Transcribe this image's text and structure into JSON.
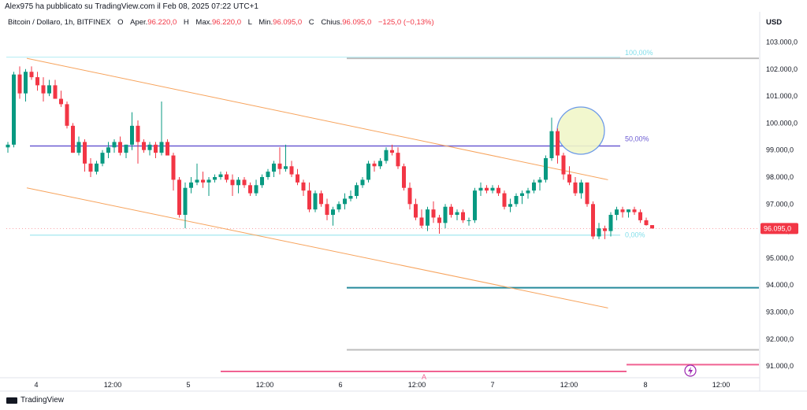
{
  "header": {
    "published_line": "Alex975 ha pubblicato su TradingView.com il Feb 08, 2025 07:22 UTC+1",
    "symbol": "Bitcoin / Dollaro, 1h, BITFINEX",
    "open_label": "O",
    "open_key": "Aper.",
    "open_value": "96.220,0",
    "high_label": "H",
    "high_key": "Max.",
    "high_value": "96.220,0",
    "low_label": "L",
    "low_key": "Min.",
    "low_value": "96.095,0",
    "close_label": "C",
    "close_key": "Chius.",
    "close_value": "96.095,0",
    "change": "−125,0 (−0,13%)"
  },
  "axis": {
    "currency": "USD",
    "price_labels": [
      "103.000,0",
      "102.000,0",
      "101.000,0",
      "100.000,0",
      "99.000,0",
      "98.000,0",
      "97.000,0",
      "96.000,0",
      "95.000,0",
      "94.000,0",
      "93.000,0",
      "92.000,0",
      "91.000,0"
    ],
    "time_labels": [
      "4",
      "12:00",
      "5",
      "12:00",
      "6",
      "12:00",
      "7",
      "12:00",
      "8",
      "12:00"
    ],
    "current_price_tag": "96.095,0"
  },
  "annotations": {
    "fib_100": "100,00%",
    "fib_50": "50,00%",
    "fib_0": "0,00%",
    "alert_marker": "A"
  },
  "footer": {
    "brand": "TradingView"
  },
  "colors": {
    "up": "#089981",
    "down": "#f23645",
    "trendline": "#f7a35c",
    "level50": "#6b5bd2",
    "teal_level": "#268a9c",
    "light_level": "#b2ebf2",
    "pink_level": "#f06292",
    "grey_level": "#bdbdbd"
  },
  "chart_data": {
    "type": "candlestick",
    "symbol": "Bitcoin / Dollaro",
    "interval": "1h",
    "exchange": "BITFINEX",
    "ylim": [
      90400,
      103900
    ],
    "price_levels": {
      "fib_100": 102400,
      "fib_50": 99150,
      "fib_0": 95850,
      "support_teal": 93900,
      "grey_lower": 91600,
      "pink_lower": 90800,
      "pink_right": 91050
    },
    "trendlines": [
      {
        "from": [
          0,
          102400
        ],
        "to": [
          121,
          97900
        ]
      },
      {
        "from": [
          0,
          97600
        ],
        "to": [
          121,
          93150
        ]
      }
    ],
    "candles": [
      {
        "o": 99100,
        "h": 99300,
        "l": 98900,
        "c": 99200
      },
      {
        "o": 99200,
        "h": 101900,
        "l": 99100,
        "c": 101800
      },
      {
        "o": 101800,
        "h": 102100,
        "l": 100900,
        "c": 101100
      },
      {
        "o": 101100,
        "h": 102000,
        "l": 100800,
        "c": 101900
      },
      {
        "o": 101900,
        "h": 102100,
        "l": 101600,
        "c": 101700
      },
      {
        "o": 101700,
        "h": 101900,
        "l": 101200,
        "c": 101400
      },
      {
        "o": 101400,
        "h": 101700,
        "l": 100800,
        "c": 101100
      },
      {
        "o": 101100,
        "h": 101600,
        "l": 101000,
        "c": 101400
      },
      {
        "o": 101400,
        "h": 101600,
        "l": 100900,
        "c": 100900
      },
      {
        "o": 100900,
        "h": 101200,
        "l": 100600,
        "c": 100700
      },
      {
        "o": 100700,
        "h": 100800,
        "l": 99800,
        "c": 99900
      },
      {
        "o": 99900,
        "h": 100000,
        "l": 98900,
        "c": 98900
      },
      {
        "o": 98900,
        "h": 99500,
        "l": 98800,
        "c": 99300
      },
      {
        "o": 99300,
        "h": 99400,
        "l": 98200,
        "c": 98500
      },
      {
        "o": 98500,
        "h": 98700,
        "l": 98000,
        "c": 98200
      },
      {
        "o": 98200,
        "h": 98600,
        "l": 98100,
        "c": 98500
      },
      {
        "o": 98500,
        "h": 99000,
        "l": 98400,
        "c": 98900
      },
      {
        "o": 98900,
        "h": 99300,
        "l": 98700,
        "c": 99100
      },
      {
        "o": 99100,
        "h": 99400,
        "l": 98900,
        "c": 99300
      },
      {
        "o": 99300,
        "h": 99500,
        "l": 98800,
        "c": 98900
      },
      {
        "o": 98900,
        "h": 99200,
        "l": 98700,
        "c": 99200
      },
      {
        "o": 99200,
        "h": 100400,
        "l": 99000,
        "c": 99900
      },
      {
        "o": 99900,
        "h": 100100,
        "l": 98500,
        "c": 99300
      },
      {
        "o": 99300,
        "h": 99400,
        "l": 98900,
        "c": 99000
      },
      {
        "o": 99000,
        "h": 99300,
        "l": 98800,
        "c": 99200
      },
      {
        "o": 99200,
        "h": 99300,
        "l": 98700,
        "c": 98900
      },
      {
        "o": 98900,
        "h": 100800,
        "l": 98800,
        "c": 99300
      },
      {
        "o": 99300,
        "h": 99400,
        "l": 98800,
        "c": 98800
      },
      {
        "o": 98800,
        "h": 98900,
        "l": 97500,
        "c": 97900
      },
      {
        "o": 97900,
        "h": 98000,
        "l": 96500,
        "c": 96600
      },
      {
        "o": 96600,
        "h": 97800,
        "l": 96100,
        "c": 97600
      },
      {
        "o": 97600,
        "h": 98000,
        "l": 97400,
        "c": 97800
      },
      {
        "o": 97800,
        "h": 98500,
        "l": 97700,
        "c": 97900
      },
      {
        "o": 97900,
        "h": 98200,
        "l": 97600,
        "c": 97800
      },
      {
        "o": 97800,
        "h": 98000,
        "l": 97300,
        "c": 97900
      },
      {
        "o": 97900,
        "h": 98100,
        "l": 97800,
        "c": 98000
      },
      {
        "o": 98000,
        "h": 98200,
        "l": 97900,
        "c": 98100
      },
      {
        "o": 98100,
        "h": 98200,
        "l": 97800,
        "c": 97900
      },
      {
        "o": 97900,
        "h": 98100,
        "l": 97300,
        "c": 97700
      },
      {
        "o": 97700,
        "h": 98000,
        "l": 97400,
        "c": 97900
      },
      {
        "o": 97900,
        "h": 98000,
        "l": 97600,
        "c": 97700
      },
      {
        "o": 97700,
        "h": 97800,
        "l": 97300,
        "c": 97400
      },
      {
        "o": 97400,
        "h": 97900,
        "l": 97300,
        "c": 97700
      },
      {
        "o": 97700,
        "h": 98100,
        "l": 97600,
        "c": 98000
      },
      {
        "o": 98000,
        "h": 98300,
        "l": 97900,
        "c": 98200
      },
      {
        "o": 98200,
        "h": 98600,
        "l": 98000,
        "c": 98500
      },
      {
        "o": 98500,
        "h": 99100,
        "l": 98100,
        "c": 98300
      },
      {
        "o": 98300,
        "h": 99200,
        "l": 98200,
        "c": 98400
      },
      {
        "o": 98400,
        "h": 98600,
        "l": 98000,
        "c": 98100
      },
      {
        "o": 98100,
        "h": 98300,
        "l": 97700,
        "c": 97800
      },
      {
        "o": 97800,
        "h": 97900,
        "l": 97300,
        "c": 97500
      },
      {
        "o": 97500,
        "h": 97800,
        "l": 96700,
        "c": 96800
      },
      {
        "o": 96800,
        "h": 97500,
        "l": 96700,
        "c": 97400
      },
      {
        "o": 97400,
        "h": 97500,
        "l": 96900,
        "c": 97000
      },
      {
        "o": 97000,
        "h": 97200,
        "l": 96400,
        "c": 96600
      },
      {
        "o": 96600,
        "h": 96900,
        "l": 96200,
        "c": 96800
      },
      {
        "o": 96800,
        "h": 97100,
        "l": 96700,
        "c": 97000
      },
      {
        "o": 97000,
        "h": 97400,
        "l": 96800,
        "c": 97200
      },
      {
        "o": 97200,
        "h": 97500,
        "l": 97100,
        "c": 97300
      },
      {
        "o": 97300,
        "h": 97800,
        "l": 97200,
        "c": 97700
      },
      {
        "o": 97700,
        "h": 98000,
        "l": 97600,
        "c": 97900
      },
      {
        "o": 97900,
        "h": 98600,
        "l": 97800,
        "c": 98500
      },
      {
        "o": 98500,
        "h": 98600,
        "l": 98200,
        "c": 98400
      },
      {
        "o": 98400,
        "h": 98700,
        "l": 98300,
        "c": 98600
      },
      {
        "o": 98600,
        "h": 99100,
        "l": 98500,
        "c": 99000
      },
      {
        "o": 99000,
        "h": 99200,
        "l": 98800,
        "c": 98900
      },
      {
        "o": 98900,
        "h": 99100,
        "l": 98300,
        "c": 98400
      },
      {
        "o": 98400,
        "h": 98500,
        "l": 97500,
        "c": 97600
      },
      {
        "o": 97600,
        "h": 97800,
        "l": 96800,
        "c": 97000
      },
      {
        "o": 97000,
        "h": 97200,
        "l": 96400,
        "c": 96500
      },
      {
        "o": 96500,
        "h": 96800,
        "l": 96100,
        "c": 96200
      },
      {
        "o": 96200,
        "h": 96900,
        "l": 96000,
        "c": 96800
      },
      {
        "o": 96800,
        "h": 97100,
        "l": 96300,
        "c": 96500
      },
      {
        "o": 96500,
        "h": 96600,
        "l": 95900,
        "c": 96300
      },
      {
        "o": 96300,
        "h": 97000,
        "l": 96100,
        "c": 96900
      },
      {
        "o": 96900,
        "h": 97000,
        "l": 96500,
        "c": 96600
      },
      {
        "o": 96600,
        "h": 96800,
        "l": 96400,
        "c": 96700
      },
      {
        "o": 96700,
        "h": 96800,
        "l": 96300,
        "c": 96400
      },
      {
        "o": 96400,
        "h": 96500,
        "l": 96200,
        "c": 96400
      },
      {
        "o": 96400,
        "h": 97600,
        "l": 96300,
        "c": 97500
      },
      {
        "o": 97500,
        "h": 97800,
        "l": 97300,
        "c": 97600
      },
      {
        "o": 97600,
        "h": 97700,
        "l": 97400,
        "c": 97500
      },
      {
        "o": 97500,
        "h": 97700,
        "l": 97400,
        "c": 97600
      },
      {
        "o": 97600,
        "h": 97700,
        "l": 97300,
        "c": 97400
      },
      {
        "o": 97400,
        "h": 97500,
        "l": 96800,
        "c": 96900
      },
      {
        "o": 96900,
        "h": 97200,
        "l": 96700,
        "c": 97000
      },
      {
        "o": 97000,
        "h": 97400,
        "l": 96900,
        "c": 97300
      },
      {
        "o": 97300,
        "h": 97500,
        "l": 97000,
        "c": 97400
      },
      {
        "o": 97400,
        "h": 97600,
        "l": 97200,
        "c": 97500
      },
      {
        "o": 97500,
        "h": 97900,
        "l": 97400,
        "c": 97800
      },
      {
        "o": 97800,
        "h": 98000,
        "l": 97500,
        "c": 97900
      },
      {
        "o": 97900,
        "h": 98800,
        "l": 97800,
        "c": 98700
      },
      {
        "o": 98700,
        "h": 100200,
        "l": 98600,
        "c": 99700
      },
      {
        "o": 99700,
        "h": 99800,
        "l": 98500,
        "c": 98800
      },
      {
        "o": 98800,
        "h": 98900,
        "l": 97900,
        "c": 98100
      },
      {
        "o": 98100,
        "h": 98400,
        "l": 97700,
        "c": 97800
      },
      {
        "o": 97800,
        "h": 98000,
        "l": 97300,
        "c": 97400
      },
      {
        "o": 97400,
        "h": 97900,
        "l": 97200,
        "c": 97800
      },
      {
        "o": 97800,
        "h": 97800,
        "l": 96900,
        "c": 97000
      },
      {
        "o": 97000,
        "h": 97100,
        "l": 95700,
        "c": 95800
      },
      {
        "o": 95800,
        "h": 96300,
        "l": 95700,
        "c": 96100
      },
      {
        "o": 96100,
        "h": 96200,
        "l": 95700,
        "c": 96000
      },
      {
        "o": 96000,
        "h": 96700,
        "l": 95800,
        "c": 96600
      },
      {
        "o": 96600,
        "h": 96900,
        "l": 96400,
        "c": 96800
      },
      {
        "o": 96800,
        "h": 96900,
        "l": 96500,
        "c": 96700
      },
      {
        "o": 96700,
        "h": 96800,
        "l": 96500,
        "c": 96800
      },
      {
        "o": 96800,
        "h": 96900,
        "l": 96600,
        "c": 96700
      },
      {
        "o": 96700,
        "h": 96800,
        "l": 96300,
        "c": 96400
      },
      {
        "o": 96400,
        "h": 96500,
        "l": 96200,
        "c": 96220
      },
      {
        "o": 96220,
        "h": 96220,
        "l": 96095,
        "c": 96095
      }
    ]
  }
}
